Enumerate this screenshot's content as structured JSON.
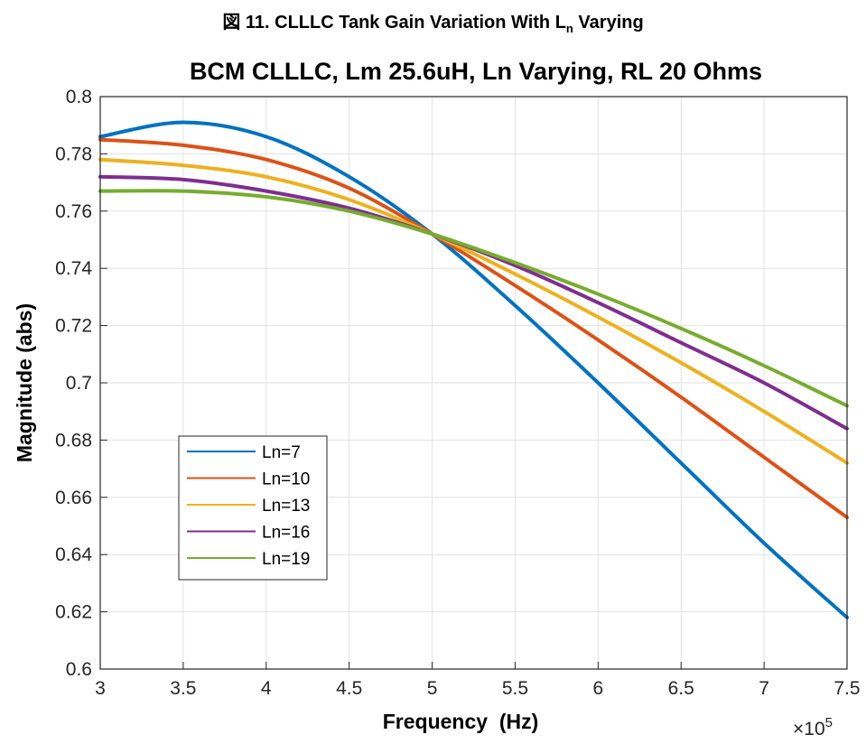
{
  "caption": {
    "prefix": "図 11. CLLLC Tank Gain Variation With L",
    "subscript": "n",
    "suffix": " Varying"
  },
  "chart_data": {
    "type": "line",
    "title": "BCM CLLLC, Lm 25.6uH, Ln Varying, RL 20 Ohms",
    "xlabel": "Frequency  (Hz)",
    "ylabel": "Magnitude (abs)",
    "x_multiplier_base": "×10",
    "x_multiplier_exponent": "5",
    "xlim": [
      3,
      7.5
    ],
    "ylim": [
      0.6,
      0.8
    ],
    "x_ticks": [
      3,
      3.5,
      4,
      4.5,
      5,
      5.5,
      6,
      6.5,
      7,
      7.5
    ],
    "x_tick_labels": [
      "3",
      "3.5",
      "4",
      "4.5",
      "5",
      "5.5",
      "6",
      "6.5",
      "7",
      "7.5"
    ],
    "y_ticks": [
      0.6,
      0.62,
      0.64,
      0.66,
      0.68,
      0.7,
      0.72,
      0.74,
      0.76,
      0.78,
      0.8
    ],
    "y_tick_labels": [
      "0.6",
      "0.62",
      "0.64",
      "0.66",
      "0.68",
      "0.7",
      "0.72",
      "0.74",
      "0.76",
      "0.78",
      "0.8"
    ],
    "grid": true,
    "legend_position": "bottom-left",
    "x": [
      3,
      3.5,
      4,
      4.5,
      5,
      5.5,
      6,
      6.5,
      7,
      7.5
    ],
    "series": [
      {
        "name": "Ln=7",
        "color": "#0072BD",
        "values": [
          0.786,
          0.791,
          0.786,
          0.772,
          0.752,
          0.727,
          0.7,
          0.672,
          0.644,
          0.618
        ]
      },
      {
        "name": "Ln=10",
        "color": "#D95319",
        "values": [
          0.785,
          0.783,
          0.778,
          0.768,
          0.752,
          0.734,
          0.715,
          0.695,
          0.674,
          0.653
        ]
      },
      {
        "name": "Ln=13",
        "color": "#EDB120",
        "values": [
          0.778,
          0.776,
          0.772,
          0.764,
          0.752,
          0.738,
          0.723,
          0.707,
          0.69,
          0.672
        ]
      },
      {
        "name": "Ln=16",
        "color": "#7E2F8E",
        "values": [
          0.772,
          0.771,
          0.767,
          0.761,
          0.752,
          0.741,
          0.728,
          0.714,
          0.7,
          0.684
        ]
      },
      {
        "name": "Ln=19",
        "color": "#77AC30",
        "values": [
          0.767,
          0.767,
          0.765,
          0.76,
          0.752,
          0.742,
          0.731,
          0.719,
          0.706,
          0.692
        ]
      }
    ]
  }
}
